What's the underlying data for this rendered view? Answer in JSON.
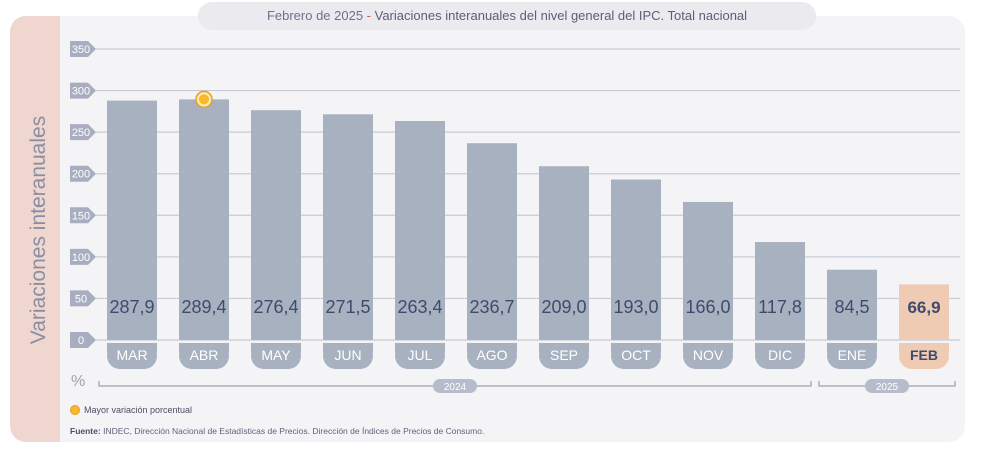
{
  "title": {
    "date": "Febrero de 2025",
    "separator": " - ",
    "text": "Variaciones interanuales del nivel general del IPC. Total nacional"
  },
  "chart_data": {
    "type": "bar",
    "ylabel": "Variaciones interanuales",
    "yunit": "%",
    "ylim": [
      0,
      350
    ],
    "yticks": [
      0,
      50,
      100,
      150,
      200,
      250,
      300,
      350
    ],
    "categories": [
      "MAR",
      "ABR",
      "MAY",
      "JUN",
      "JUL",
      "AGO",
      "SEP",
      "OCT",
      "NOV",
      "DIC",
      "ENE",
      "FEB"
    ],
    "values": [
      287.9,
      289.4,
      276.4,
      271.5,
      263.4,
      236.7,
      209.0,
      193.0,
      166.0,
      117.8,
      84.5,
      66.9
    ],
    "value_labels": [
      "287,9",
      "289,4",
      "276,4",
      "271,5",
      "263,4",
      "236,7",
      "209,0",
      "193,0",
      "166,0",
      "117,8",
      "84,5",
      "66,9"
    ],
    "highlight_index": 11,
    "max_marker_index": 1,
    "year_groups": [
      {
        "label": "2024",
        "start": 0,
        "end": 9
      },
      {
        "label": "2025",
        "start": 10,
        "end": 11
      }
    ],
    "grid": true
  },
  "legend": {
    "marker_label": "Mayor variación porcentual"
  },
  "source": {
    "label": "Fuente:",
    "text": "INDEC, Dirección Nacional de Estadísticas de Precios. Dirección de Índices de Precios de Consumo."
  },
  "colors": {
    "bar": "#a8b1c0",
    "bar_highlight": "#efcbb4",
    "value_text": "#3f4a6d",
    "tick_pill": "#a8b1c0",
    "max_marker": "#f5b82e"
  }
}
